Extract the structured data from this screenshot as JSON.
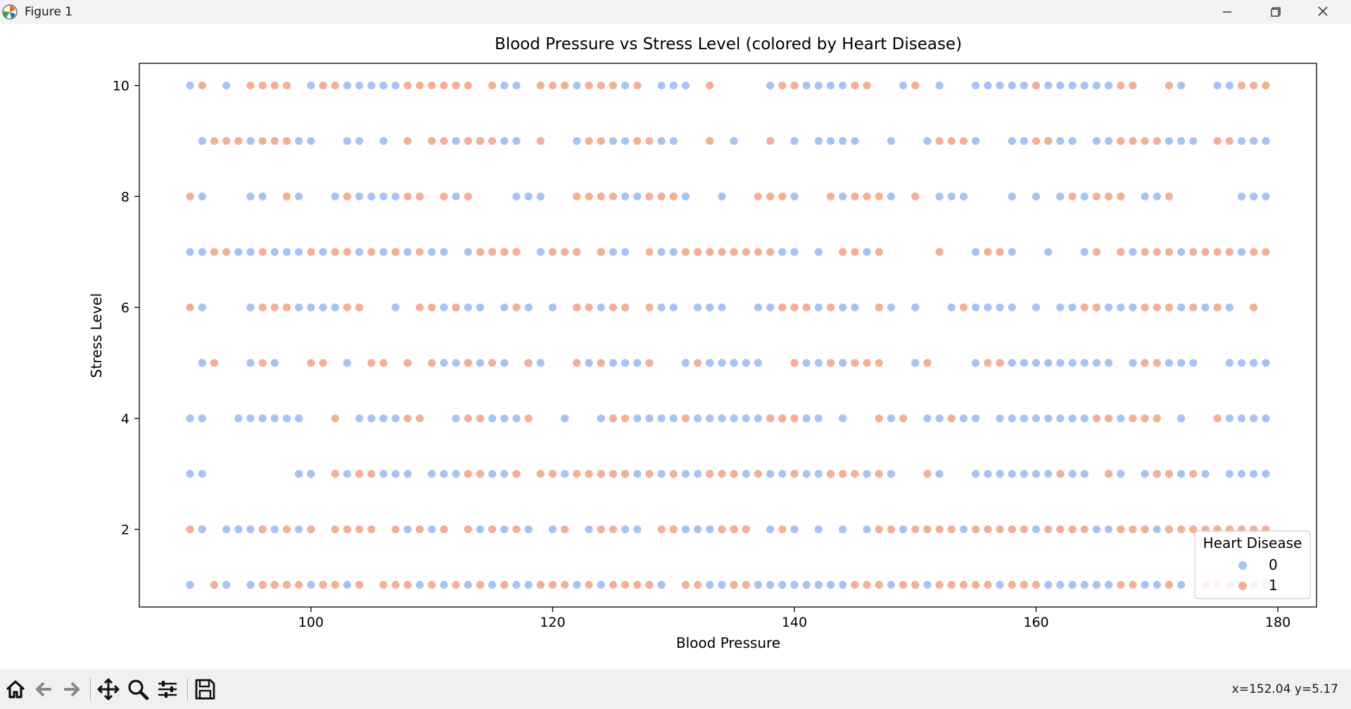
{
  "window": {
    "title": "Figure 1"
  },
  "toolbar": {
    "buttons": [
      "home-icon",
      "back-arrow-icon",
      "forward-arrow-icon",
      "pan-icon",
      "zoom-icon",
      "configure-subplots-icon",
      "save-icon"
    ],
    "coords_text": "x=152.04 y=5.17"
  },
  "colors": {
    "class0": "#a6c3f4",
    "class1": "#f4b096"
  },
  "chart_data": {
    "type": "scatter",
    "title": "Blood Pressure vs Stress Level (colored by Heart Disease)",
    "xlabel": "Blood Pressure",
    "ylabel": "Stress Level",
    "xlim": [
      85.8,
      183.2
    ],
    "ylim": [
      0.6,
      10.4
    ],
    "xticks": [
      100,
      120,
      140,
      160,
      180
    ],
    "yticks": [
      2,
      4,
      6,
      8,
      10
    ],
    "grid": false,
    "legend": {
      "title": "Heart Disease",
      "entries": [
        "0",
        "1"
      ],
      "placement": "lower right"
    },
    "series": [
      {
        "name": "0",
        "color": "#a6c3f4",
        "rows": [
          {
            "y": 10,
            "x": [
              90,
              93,
              96,
              97,
              100,
              101,
              102,
              103,
              104,
              105,
              106,
              107,
              112,
              116,
              117,
              122,
              126,
              129,
              130,
              131,
              138,
              140,
              141,
              142,
              143,
              144,
              149,
              150,
              152,
              155,
              156,
              157,
              158,
              159,
              160,
              161,
              162,
              163,
              164,
              165,
              166,
              172,
              175,
              176
            ]
          },
          {
            "y": 9,
            "x": [
              91,
              94,
              95,
              98,
              99,
              100,
              103,
              104,
              106,
              112,
              113,
              114,
              116,
              117,
              122,
              125,
              126,
              129,
              130,
              135,
              140,
              142,
              143,
              144,
              145,
              148,
              151,
              155,
              158,
              159,
              161,
              162,
              163,
              165,
              166,
              171,
              172,
              173,
              177,
              178,
              179
            ]
          },
          {
            "y": 8,
            "x": [
              91,
              95,
              96,
              99,
              102,
              104,
              105,
              106,
              107,
              109,
              112,
              117,
              118,
              119,
              126,
              127,
              128,
              129,
              130,
              131,
              134,
              138,
              140,
              144,
              145,
              148,
              150,
              152,
              153,
              154,
              158,
              160,
              162,
              164,
              167,
              169,
              170,
              177,
              178,
              179
            ]
          },
          {
            "y": 7,
            "x": [
              90,
              91,
              94,
              95,
              97,
              98,
              99,
              101,
              104,
              106,
              107,
              108,
              110,
              111,
              113,
              114,
              115,
              116,
              119,
              121,
              124,
              125,
              126,
              129,
              130,
              132,
              133,
              139,
              140,
              142,
              146,
              155,
              158,
              161,
              164,
              168,
              172,
              176,
              177
            ]
          },
          {
            "y": 6,
            "x": [
              91,
              95,
              98,
              99,
              100,
              101,
              102,
              104,
              107,
              111,
              112,
              113,
              114,
              116,
              118,
              120,
              122,
              124,
              126,
              129,
              130,
              132,
              133,
              134,
              137,
              138,
              139,
              140,
              141,
              142,
              144,
              145,
              147,
              148,
              150,
              153,
              155,
              156,
              157,
              158,
              160,
              162,
              163,
              165,
              166,
              167,
              168,
              171,
              172,
              173,
              174,
              175,
              176
            ]
          },
          {
            "y": 5,
            "x": [
              91,
              95,
              97,
              103,
              111,
              112,
              113,
              114,
              116,
              118,
              119,
              123,
              125,
              126,
              127,
              131,
              133,
              134,
              135,
              136,
              137,
              141,
              142,
              143,
              144,
              145,
              150,
              155,
              157,
              158,
              159,
              160,
              161,
              162,
              163,
              164,
              165,
              166,
              168,
              169,
              171,
              172,
              173,
              176,
              177,
              178,
              179
            ]
          },
          {
            "y": 4,
            "x": [
              90,
              91,
              94,
              95,
              96,
              97,
              98,
              99,
              104,
              105,
              106,
              107,
              112,
              115,
              116,
              117,
              121,
              124,
              127,
              128,
              129,
              130,
              131,
              132,
              133,
              134,
              135,
              136,
              137,
              138,
              139,
              140,
              141,
              142,
              144,
              148,
              151,
              152,
              153,
              154,
              155,
              157,
              158,
              159,
              160,
              161,
              162,
              163,
              164,
              167,
              169,
              172,
              176,
              177,
              178,
              179
            ]
          },
          {
            "y": 3,
            "x": [
              90,
              91,
              99,
              100,
              103,
              104,
              106,
              107,
              108,
              110,
              111,
              112,
              114,
              115,
              116,
              117,
              121,
              126,
              127,
              128,
              129,
              131,
              132,
              133,
              134,
              136,
              138,
              139,
              140,
              141,
              142,
              143,
              146,
              148,
              152,
              155,
              156,
              157,
              158,
              159,
              160,
              161,
              162,
              163,
              164,
              167,
              169,
              170,
              172,
              174,
              176,
              177,
              178,
              179
            ]
          },
          {
            "y": 2,
            "x": [
              91,
              93,
              94,
              95,
              96,
              97,
              99,
              100,
              103,
              105,
              108,
              109,
              110,
              111,
              113,
              114,
              115,
              116,
              117,
              118,
              120,
              123,
              126,
              127,
              130,
              131,
              132,
              133,
              135,
              136,
              138,
              140,
              142,
              144,
              146,
              148,
              149,
              151,
              153,
              154,
              155,
              156,
              157,
              158,
              159,
              160,
              161,
              162,
              163,
              164,
              165,
              166,
              167,
              168,
              169,
              170,
              171,
              172,
              173,
              174,
              175,
              176
            ]
          },
          {
            "y": 1,
            "x": [
              90,
              93,
              95,
              96,
              97,
              98,
              100,
              101,
              102,
              103,
              104,
              108,
              109,
              111,
              113,
              114,
              115,
              116,
              117,
              118,
              119,
              120,
              122,
              124,
              128,
              129,
              133,
              134,
              137,
              138,
              139,
              140,
              141,
              142,
              143,
              144,
              146,
              147,
              148,
              150,
              151,
              157,
              159,
              161,
              162,
              163,
              164,
              165,
              166,
              169,
              170,
              172,
              174,
              176,
              177,
              178,
              179
            ]
          }
        ]
      },
      {
        "name": "1",
        "color": "#f4b096",
        "rows": [
          {
            "y": 10,
            "x": [
              91,
              95,
              96,
              97,
              98,
              101,
              102,
              108,
              109,
              110,
              111,
              112,
              113,
              115,
              119,
              120,
              121,
              123,
              124,
              125,
              127,
              133,
              139,
              140,
              145,
              146,
              150,
              160,
              167,
              168,
              171,
              177,
              178,
              179
            ]
          },
          {
            "y": 9,
            "x": [
              92,
              93,
              94,
              96,
              97,
              98,
              108,
              110,
              111,
              113,
              114,
              115,
              119,
              123,
              124,
              127,
              128,
              133,
              138,
              152,
              153,
              154,
              160,
              161,
              167,
              168,
              169,
              170,
              175,
              176
            ]
          },
          {
            "y": 8,
            "x": [
              90,
              98,
              103,
              108,
              109,
              111,
              113,
              122,
              123,
              124,
              125,
              128,
              129,
              130,
              137,
              138,
              139,
              143,
              145,
              146,
              147,
              150,
              163,
              165,
              166,
              167,
              171
            ]
          },
          {
            "y": 7,
            "x": [
              92,
              93,
              96,
              100,
              102,
              103,
              105,
              107,
              109,
              114,
              115,
              116,
              117,
              120,
              121,
              122,
              124,
              128,
              131,
              132,
              133,
              134,
              135,
              136,
              137,
              138,
              144,
              145,
              147,
              152,
              156,
              157,
              165,
              167,
              169,
              170,
              171,
              173,
              174,
              175,
              176,
              178,
              179
            ]
          },
          {
            "y": 6,
            "x": [
              90,
              96,
              97,
              98,
              103,
              104,
              109,
              110,
              112,
              117,
              122,
              123,
              125,
              126,
              128,
              139,
              140,
              141,
              143,
              147,
              154,
              164,
              165,
              169,
              170,
              171,
              173,
              175,
              178
            ]
          },
          {
            "y": 5,
            "x": [
              92,
              96,
              100,
              101,
              105,
              106,
              108,
              110,
              113,
              115,
              118,
              122,
              124,
              128,
              132,
              140,
              143,
              145,
              146,
              147,
              151,
              156,
              157,
              169,
              170
            ]
          },
          {
            "y": 4,
            "x": [
              102,
              108,
              109,
              113,
              114,
              118,
              125,
              126,
              131,
              138,
              139,
              140,
              147,
              149,
              153,
              165,
              166,
              168,
              169,
              170,
              175
            ]
          },
          {
            "y": 3,
            "x": [
              102,
              104,
              105,
              113,
              114,
              117,
              119,
              120,
              122,
              123,
              124,
              125,
              126,
              128,
              130,
              133,
              134,
              135,
              137,
              140,
              143,
              144,
              145,
              147,
              151,
              162,
              166,
              170,
              171,
              173
            ]
          },
          {
            "y": 2,
            "x": [
              90,
              96,
              98,
              100,
              102,
              103,
              104,
              105,
              107,
              109,
              111,
              113,
              115,
              117,
              121,
              124,
              125,
              129,
              130,
              134,
              135,
              136,
              139,
              147,
              148,
              150,
              151,
              152,
              153,
              155,
              156,
              157,
              158,
              159,
              161,
              162,
              163,
              164,
              167,
              168,
              169,
              171,
              172,
              173,
              174,
              175,
              176,
              177,
              178,
              179
            ]
          },
          {
            "y": 1,
            "x": [
              92,
              96,
              97,
              98,
              99,
              101,
              102,
              104,
              106,
              107,
              108,
              110,
              112,
              114,
              116,
              119,
              120,
              121,
              123,
              125,
              126,
              127,
              128,
              131,
              132,
              135,
              136,
              145,
              146,
              147,
              149,
              150,
              152,
              153,
              154,
              155,
              156,
              158,
              159,
              160,
              167,
              168,
              171,
              174,
              175,
              176,
              179
            ]
          }
        ]
      }
    ]
  }
}
